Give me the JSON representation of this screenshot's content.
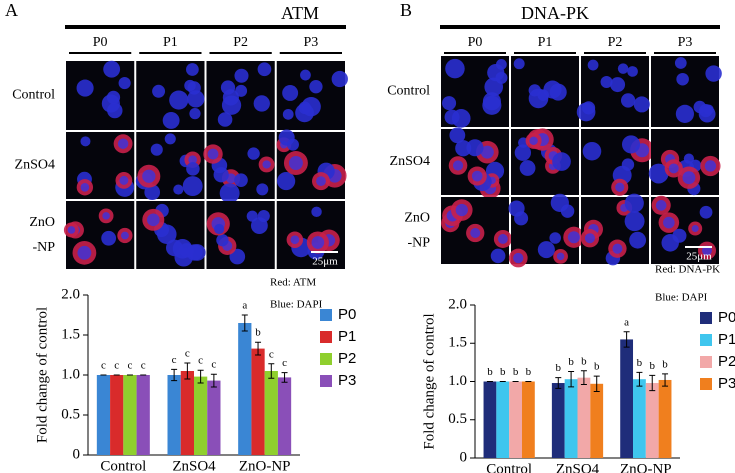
{
  "panels": [
    {
      "label": "A",
      "title": "ATM",
      "headers": [
        "P0",
        "P1",
        "P2",
        "P3"
      ],
      "rows": [
        "Control",
        "ZnSO4",
        "ZnO",
        "-NP"
      ],
      "scale": "25μm",
      "legend_red": "Red: ATM",
      "legend_blue": "Blue: DAPI"
    },
    {
      "label": "B",
      "title": "DNA-PK",
      "headers": [
        "P0",
        "P1",
        "P2",
        "P3"
      ],
      "rows": [
        "Control",
        "ZnSO4",
        "ZnO",
        "-NP"
      ],
      "scale": "25μm",
      "legend_red": "Red: DNA-PK",
      "legend_blue": "Blue: DAPI"
    }
  ],
  "chart_data": [
    {
      "type": "bar",
      "y_label": "Fold change of control",
      "categories": [
        "Control",
        "ZnSO4",
        "ZnO-NP"
      ],
      "ylim": [
        0,
        2
      ],
      "yticks": [
        0,
        0.5,
        {
          "value": 1,
          "label": "1.0"
        },
        1.5,
        {
          "value": 2,
          "label": "2.0"
        }
      ],
      "series": [
        {
          "name": "P0",
          "color": "#3a86d4",
          "values": [
            1.0,
            1.0,
            1.65
          ],
          "errors": [
            0.0,
            0.07,
            0.1
          ],
          "letters": [
            "c",
            "c",
            "a"
          ]
        },
        {
          "name": "P1",
          "color": "#d92b2b",
          "values": [
            1.0,
            1.05,
            1.33
          ],
          "errors": [
            0.0,
            0.1,
            0.08
          ],
          "letters": [
            "c",
            "c",
            "b"
          ]
        },
        {
          "name": "P2",
          "color": "#8fcf2e",
          "values": [
            1.0,
            0.98,
            1.05
          ],
          "errors": [
            0.0,
            0.08,
            0.09
          ],
          "letters": [
            "c",
            "c",
            "c"
          ]
        },
        {
          "name": "P3",
          "color": "#8a4fb8",
          "values": [
            1.0,
            0.93,
            0.97
          ],
          "errors": [
            0.0,
            0.08,
            0.06
          ],
          "letters": [
            "c",
            "c",
            "c"
          ]
        }
      ]
    },
    {
      "type": "bar",
      "y_label": "Fold change of control",
      "categories": [
        "Control",
        "ZnSO4",
        "ZnO-NP"
      ],
      "ylim": [
        0,
        2
      ],
      "yticks": [
        0,
        0.5,
        {
          "value": 1,
          "label": "1.0"
        },
        1.5,
        {
          "value": 2,
          "label": "2.0"
        }
      ],
      "series": [
        {
          "name": "P0",
          "color": "#1f2d7a",
          "values": [
            1.0,
            0.98,
            1.55
          ],
          "errors": [
            0.0,
            0.07,
            0.1
          ],
          "letters": [
            "b",
            "b",
            "a"
          ]
        },
        {
          "name": "P1",
          "color": "#3fc6ee",
          "values": [
            1.0,
            1.03,
            1.03
          ],
          "errors": [
            0.0,
            0.1,
            0.09
          ],
          "letters": [
            "b",
            "b",
            "b"
          ]
        },
        {
          "name": "P2",
          "color": "#f2a8a8",
          "values": [
            1.0,
            1.05,
            0.98
          ],
          "errors": [
            0.0,
            0.09,
            0.1
          ],
          "letters": [
            "b",
            "b",
            "b"
          ]
        },
        {
          "name": "P3",
          "color": "#f07f1e",
          "values": [
            1.0,
            0.97,
            1.02
          ],
          "errors": [
            0.0,
            0.1,
            0.08
          ],
          "letters": [
            "b",
            "b",
            "b"
          ]
        }
      ]
    }
  ]
}
